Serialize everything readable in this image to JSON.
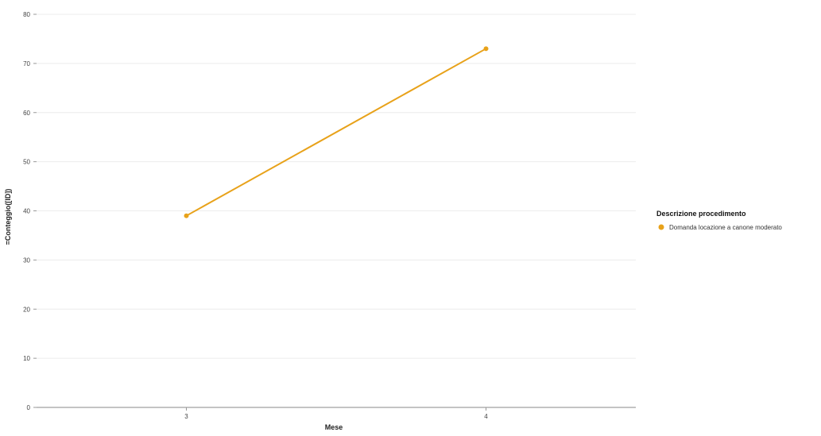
{
  "chart_data": {
    "type": "line",
    "title": "",
    "xlabel": "Mese",
    "ylabel": "=Conteggio([ID])",
    "x": [
      "3",
      "4"
    ],
    "ylim": [
      0,
      80
    ],
    "yticks": [
      0,
      10,
      20,
      30,
      40,
      50,
      60,
      70,
      80
    ],
    "grid": true,
    "legend": {
      "title": "Descrizione procedimento",
      "placement": "right"
    },
    "series": [
      {
        "name": "Domanda locazione a canone moderato",
        "color": "#E8A21A",
        "values": [
          39,
          73
        ]
      }
    ]
  }
}
